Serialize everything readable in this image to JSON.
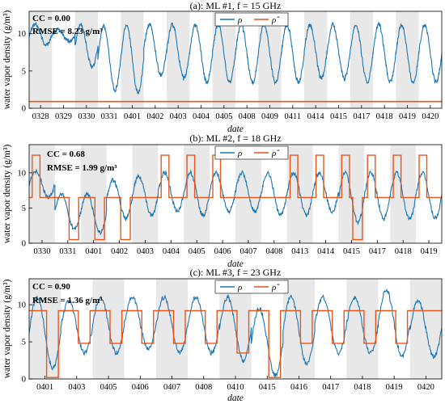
{
  "colors": {
    "rho": "#1f77b4",
    "rho_hat": "#e8571c",
    "band": "#e8e8e8"
  },
  "legend_labels": {
    "rho": "ρ",
    "rho_hat": "ρ̂"
  },
  "chart_data": [
    {
      "type": "line",
      "title": "(a): ML #1, f = 15 GHz",
      "xlabel": "date",
      "ylabel": "water vapor density (g/m³)",
      "stats": {
        "cc": "CC = 0.00",
        "rmse": "RMSE = 8.23 g/m³"
      },
      "ylim": [
        0,
        13
      ],
      "yticks": [
        0,
        5,
        10
      ],
      "xlim": [
        0,
        28
      ],
      "xticks": [
        "0328",
        "0329",
        "0330",
        "0331",
        "0401",
        "0402",
        "0403",
        "0404",
        "0405",
        "0408",
        "0409",
        "0411",
        "0414",
        "0415",
        "0417",
        "0418",
        "0419",
        "0420"
      ],
      "grid": false,
      "legend": "top-center",
      "series": [
        {
          "name": "ρ",
          "mode": "smooth",
          "low": [
            8.5,
            9.0,
            5.5,
            2.5,
            2.0,
            4.5,
            4.0,
            3.5,
            3.5,
            3.5,
            3.5,
            3.5,
            4.0,
            4.0,
            3.5,
            3.5,
            3.5,
            3.5
          ],
          "high": [
            11.3,
            10.5,
            11.2,
            11.0,
            11.2,
            11.2,
            11.2,
            11.2,
            11.2,
            11.2,
            11.2,
            11.2,
            11.2,
            11.2,
            11.2,
            11.2,
            11.2,
            11.2
          ]
        },
        {
          "name": "ρ̂",
          "mode": "constant",
          "value": 0.9
        }
      ]
    },
    {
      "type": "line",
      "title": "(b): ML #2, f = 18 GHz",
      "xlabel": "date",
      "ylabel": "water vapor density (g/m³)",
      "stats": {
        "cc": "CC = 0.68",
        "rmse": "RMSE = 1.99 g/m³"
      },
      "ylim": [
        0,
        14
      ],
      "yticks": [
        0,
        5,
        10
      ],
      "xlim": [
        0,
        28
      ],
      "xticks": [
        "0330",
        "0331",
        "0401",
        "0402",
        "0403",
        "0404",
        "0405",
        "0406",
        "0407",
        "0408",
        "0413",
        "0414",
        "0415",
        "0417",
        "0418",
        "0419"
      ],
      "grid": false,
      "legend": "top-center",
      "series": [
        {
          "name": "ρ",
          "mode": "smooth",
          "low": [
            6.5,
            2.0,
            1.5,
            3.5,
            4.0,
            4.5,
            4.0,
            4.5,
            4.5,
            4.0,
            4.0,
            4.5,
            3.0,
            3.5,
            3.5,
            3.5
          ],
          "high": [
            10.2,
            7.0,
            7.0,
            9.0,
            9.5,
            10.0,
            10.0,
            10.0,
            10.0,
            10.0,
            10.0,
            10.0,
            10.0,
            10.0,
            10.0,
            10.0
          ]
        },
        {
          "name": "ρ̂",
          "mode": "step",
          "base": 6.5,
          "low": [
            null,
            0.5,
            0.5,
            0.5,
            null,
            null,
            null,
            null,
            null,
            null,
            null,
            null,
            0.5,
            null,
            null,
            null
          ],
          "high": [
            12.5,
            null,
            null,
            null,
            null,
            12.5,
            12.5,
            12.5,
            null,
            null,
            12.5,
            12.5,
            12.5,
            12.5,
            12.5,
            12.5
          ]
        }
      ]
    },
    {
      "type": "line",
      "title": "(c): ML #3, f = 23 GHz",
      "xlabel": "date",
      "ylabel": "water vapor density (g/m³)",
      "stats": {
        "cc": "CC = 0.90",
        "rmse": "RMSE = 1.36 g/m³"
      },
      "ylim": [
        0,
        13.5
      ],
      "yticks": [
        0,
        5,
        10
      ],
      "xlim": [
        0,
        28
      ],
      "xticks": [
        "0401",
        "0403",
        "0405",
        "0406",
        "0407",
        "0408",
        "0410",
        "0415",
        "0416",
        "0417",
        "0418",
        "0419",
        "0420"
      ],
      "grid": false,
      "legend": "top-center",
      "series": [
        {
          "name": "ρ",
          "mode": "smooth",
          "low": [
            1.5,
            3.5,
            3.5,
            4.0,
            3.5,
            3.5,
            2.5,
            0.5,
            2.0,
            3.5,
            3.5,
            3.0,
            3.0
          ],
          "high": [
            11.0,
            10.5,
            11.0,
            11.0,
            11.0,
            11.0,
            11.0,
            9.5,
            11.0,
            11.0,
            11.0,
            12.0,
            10.5
          ]
        },
        {
          "name": "ρ̂",
          "mode": "step",
          "base": 9.2,
          "low": [
            0.2,
            4.8,
            4.8,
            4.8,
            4.8,
            4.8,
            3.5,
            0.2,
            4.8,
            4.8,
            4.8,
            4.8,
            null
          ],
          "high": []
        }
      ]
    }
  ]
}
